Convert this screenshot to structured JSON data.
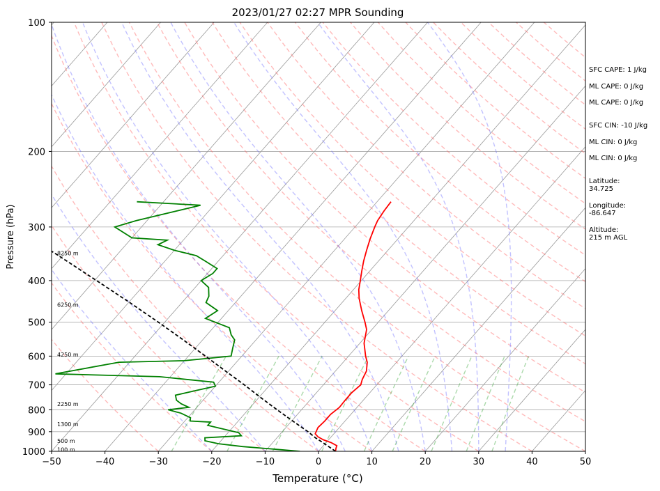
{
  "chart_data": {
    "type": "line",
    "chart_kind": "skew-t log-p sounding",
    "title": "2023/01/27 02:27 MPR Sounding",
    "xlabel": "Temperature (°C)",
    "ylabel": "Pressure (hPa)",
    "xlim": [
      -50,
      50
    ],
    "ylim": [
      1000,
      100
    ],
    "y_scale": "log",
    "x_ticks": [
      -50,
      -40,
      -30,
      -20,
      -10,
      0,
      10,
      20,
      30,
      40,
      50
    ],
    "x_tick_labels": [
      "−50",
      "−40",
      "−30",
      "−20",
      "−10",
      "0",
      "10",
      "20",
      "30",
      "40",
      "50"
    ],
    "y_ticks": [
      100,
      200,
      300,
      400,
      500,
      600,
      700,
      800,
      900,
      1000
    ],
    "y_tick_labels": [
      "100",
      "200",
      "300",
      "400",
      "500",
      "600",
      "700",
      "800",
      "900",
      "1000"
    ],
    "grid": true,
    "series": [
      {
        "role": "temperature",
        "color": "#ff0000",
        "points": [
          [
            1000,
            3.2
          ],
          [
            985,
            2.8
          ],
          [
            970,
            2.5
          ],
          [
            955,
            1.0
          ],
          [
            940,
            -1.0
          ],
          [
            925,
            -2.5
          ],
          [
            910,
            -3.5
          ],
          [
            880,
            -4.0
          ],
          [
            850,
            -3.8
          ],
          [
            820,
            -3.8
          ],
          [
            790,
            -3.3
          ],
          [
            760,
            -3.4
          ],
          [
            730,
            -3.4
          ],
          [
            700,
            -3.0
          ],
          [
            680,
            -3.6
          ],
          [
            650,
            -4.2
          ],
          [
            620,
            -5.5
          ],
          [
            600,
            -6.8
          ],
          [
            560,
            -9.2
          ],
          [
            520,
            -11.0
          ],
          [
            500,
            -12.5
          ],
          [
            470,
            -15.0
          ],
          [
            440,
            -17.5
          ],
          [
            420,
            -19.0
          ],
          [
            400,
            -20.2
          ],
          [
            380,
            -21.5
          ],
          [
            360,
            -22.8
          ],
          [
            340,
            -24.0
          ],
          [
            320,
            -25.2
          ],
          [
            300,
            -26.3
          ],
          [
            290,
            -26.8
          ],
          [
            275,
            -27.2
          ],
          [
            262,
            -27.4
          ]
        ]
      },
      {
        "role": "dewpoint",
        "color": "#008000",
        "points": [
          [
            1000,
            -3.5
          ],
          [
            990,
            -8.0
          ],
          [
            975,
            -15.0
          ],
          [
            960,
            -20.0
          ],
          [
            945,
            -23.0
          ],
          [
            930,
            -23.5
          ],
          [
            920,
            -17.0
          ],
          [
            905,
            -18.0
          ],
          [
            890,
            -21.0
          ],
          [
            870,
            -25.0
          ],
          [
            855,
            -25.0
          ],
          [
            850,
            -29.0
          ],
          [
            835,
            -29.5
          ],
          [
            815,
            -32.0
          ],
          [
            800,
            -35.0
          ],
          [
            790,
            -31.5
          ],
          [
            775,
            -33.5
          ],
          [
            760,
            -35.0
          ],
          [
            740,
            -36.0
          ],
          [
            722,
            -33.0
          ],
          [
            705,
            -30.0
          ],
          [
            690,
            -31.0
          ],
          [
            670,
            -42.0
          ],
          [
            660,
            -62.0
          ],
          [
            620,
            -52.0
          ],
          [
            615,
            -40.0
          ],
          [
            600,
            -32.0
          ],
          [
            575,
            -33.0
          ],
          [
            550,
            -34.0
          ],
          [
            535,
            -35.5
          ],
          [
            515,
            -37.0
          ],
          [
            490,
            -43.0
          ],
          [
            470,
            -42.0
          ],
          [
            450,
            -45.5
          ],
          [
            435,
            -46.0
          ],
          [
            415,
            -47.5
          ],
          [
            400,
            -50.0
          ],
          [
            385,
            -49.0
          ],
          [
            375,
            -49.0
          ],
          [
            360,
            -52.5
          ],
          [
            350,
            -55.0
          ],
          [
            340,
            -60.0
          ],
          [
            330,
            -64.0
          ],
          [
            322,
            -63.0
          ],
          [
            318,
            -70.0
          ],
          [
            300,
            -75.0
          ],
          [
            290,
            -72.0
          ],
          [
            267,
            -62.5
          ],
          [
            262,
            -75.0
          ]
        ]
      },
      {
        "role": "parcel",
        "color": "#000000",
        "dashed": true,
        "points": [
          [
            1000,
            3.2
          ],
          [
            950,
            -1.0
          ],
          [
            930,
            -2.8
          ],
          [
            900,
            -5.2
          ],
          [
            850,
            -9.8
          ],
          [
            800,
            -14.6
          ],
          [
            750,
            -19.6
          ],
          [
            700,
            -24.8
          ],
          [
            650,
            -30.6
          ],
          [
            600,
            -36.8
          ],
          [
            550,
            -43.6
          ],
          [
            500,
            -51.2
          ],
          [
            450,
            -59.8
          ],
          [
            400,
            -69.6
          ],
          [
            350,
            -80.8
          ],
          [
            300,
            -94.0
          ],
          [
            282,
            -99.5
          ]
        ]
      }
    ],
    "height_labels": [
      {
        "text": "100 m",
        "pressure": 990
      },
      {
        "text": "500 m",
        "pressure": 945
      },
      {
        "text": "1300 m",
        "pressure": 865
      },
      {
        "text": "2250 m",
        "pressure": 775
      },
      {
        "text": "4250 m",
        "pressure": 595
      },
      {
        "text": "6250 m",
        "pressure": 455
      },
      {
        "text": "8250 m",
        "pressure": 345
      }
    ],
    "annotations": [
      "SFC CAPE: 1 J/kg",
      "ML CAPE: 0 J/kg",
      "ML CAPE: 0 J/kg",
      "SFC CIN: -10 J/kg",
      "ML CIN: 0 J/kg",
      "ML CIN: 0 J/kg",
      "Latitude:\n34.725",
      "Longitude:\n-86.647",
      "Altitude:\n215 m AGL"
    ],
    "colors": {
      "dry_adiabats": "#ff6666",
      "moist_adiabats": "#6666ff",
      "mixing_ratio": "#44aa44",
      "isotherms": "#999999",
      "skew_extra": "#cc66cc"
    }
  }
}
